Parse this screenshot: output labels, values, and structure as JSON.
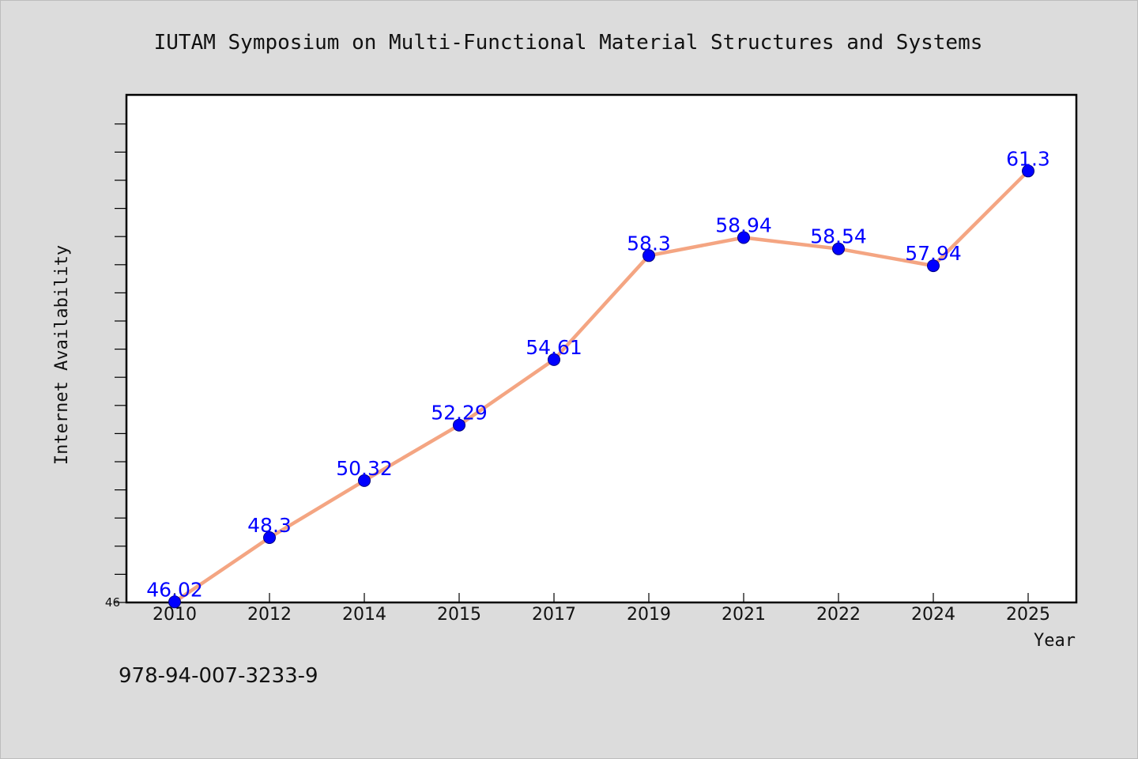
{
  "chart_data": {
    "type": "line",
    "title": "IUTAM Symposium on Multi-Functional Material Structures and Systems",
    "xlabel": "Year",
    "ylabel": "Internet Availability",
    "categories": [
      "2010",
      "2012",
      "2014",
      "2015",
      "2017",
      "2019",
      "2021",
      "2022",
      "2024",
      "2025"
    ],
    "series": [
      {
        "values": [
          46.02,
          48.3,
          50.32,
          52.29,
          54.61,
          58.3,
          58.94,
          58.54,
          57.94,
          61.3
        ]
      }
    ],
    "data_labels": [
      "46.02",
      "48.3",
      "50.32",
      "52.29",
      "54.61",
      "58.3",
      "58.94",
      "58.54",
      "57.94",
      "61.3"
    ],
    "ylim": [
      46,
      64
    ],
    "y_tick_labels": [
      "46"
    ],
    "grid": false,
    "line_color": "#f4a582",
    "marker_color": "#0000ff",
    "label_color": "#0000ff"
  },
  "footer": {
    "isbn": "978-94-007-3233-9"
  }
}
